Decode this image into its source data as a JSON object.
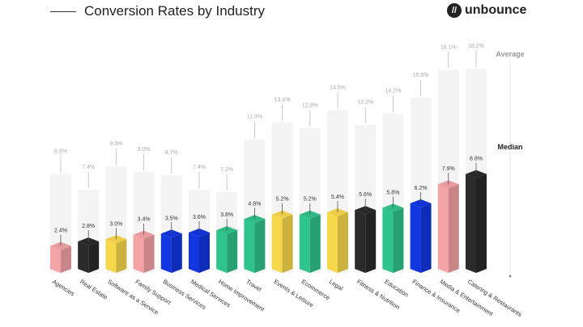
{
  "header": {
    "title": "Conversion Rates by Industry",
    "logo": "unbounce"
  },
  "chart_data": {
    "type": "bar",
    "title": "Conversion Rates by Industry",
    "categories": [
      "Agencies",
      "Real Estate",
      "Software as a Service",
      "Family Support",
      "Business Services",
      "Medical Services",
      "Home Improvement",
      "Travel",
      "Events & Leisure",
      "Ecommerce",
      "Legal",
      "Fitness & Nutrition",
      "Education",
      "Finance & Insurance",
      "Media & Entertainment",
      "Catering & Restaurants"
    ],
    "series": [
      {
        "name": "Median",
        "values": [
          2.4,
          2.8,
          3.0,
          3.4,
          3.5,
          3.6,
          3.8,
          4.8,
          5.2,
          5.2,
          5.4,
          5.6,
          5.8,
          6.2,
          7.9,
          8.8
        ]
      },
      {
        "name": "Average",
        "values": [
          8.8,
          7.4,
          9.5,
          9.0,
          8.7,
          7.4,
          7.2,
          11.9,
          13.4,
          12.9,
          14.5,
          13.2,
          14.2,
          15.6,
          18.1,
          18.2
        ]
      }
    ],
    "colors": [
      "#f4a3a6",
      "#2a2a2a",
      "#f7d84c",
      "#f4a3a6",
      "#1236e0",
      "#1236e0",
      "#2fc48c",
      "#2fc48c",
      "#f7d84c",
      "#2fc48c",
      "#f7d84c",
      "#2a2a2a",
      "#2fc48c",
      "#1236e0",
      "#f4a3a6",
      "#2a2a2a"
    ],
    "legend": [
      "Average",
      "Median"
    ],
    "legend_placement": "right",
    "ylim": [
      0,
      19
    ],
    "grid": false
  }
}
